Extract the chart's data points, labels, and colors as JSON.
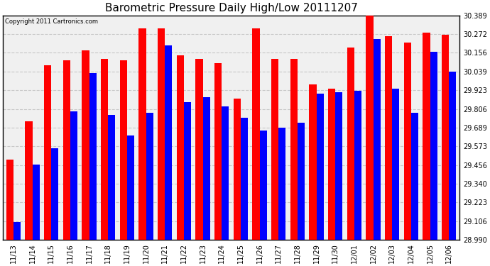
{
  "title": "Barometric Pressure Daily High/Low 20111207",
  "copyright": "Copyright 2011 Cartronics.com",
  "dates": [
    "11/13",
    "11/14",
    "11/15",
    "11/16",
    "11/17",
    "11/18",
    "11/19",
    "11/20",
    "11/21",
    "11/22",
    "11/23",
    "11/24",
    "11/25",
    "11/26",
    "11/27",
    "11/28",
    "11/29",
    "11/30",
    "12/01",
    "12/02",
    "12/03",
    "12/04",
    "12/05",
    "12/06"
  ],
  "highs": [
    29.49,
    29.73,
    30.08,
    30.11,
    30.17,
    30.12,
    30.11,
    30.31,
    30.31,
    30.14,
    30.12,
    30.09,
    29.87,
    30.31,
    30.12,
    30.12,
    29.96,
    29.93,
    30.19,
    30.4,
    30.26,
    30.22,
    30.28,
    30.27
  ],
  "lows": [
    29.1,
    29.46,
    29.56,
    29.79,
    30.03,
    29.77,
    29.64,
    29.78,
    30.2,
    29.85,
    29.88,
    29.82,
    29.75,
    29.67,
    29.69,
    29.72,
    29.9,
    29.91,
    29.92,
    30.24,
    29.93,
    29.78,
    30.16,
    30.04
  ],
  "ymin": 28.99,
  "ymax": 30.389,
  "yticks": [
    28.99,
    29.106,
    29.223,
    29.34,
    29.456,
    29.573,
    29.689,
    29.806,
    29.923,
    30.039,
    30.156,
    30.272,
    30.389
  ],
  "bar_width": 0.38,
  "high_color": "#ff0000",
  "low_color": "#0000ff",
  "bg_color": "#ffffff",
  "plot_bg_color": "#f0f0f0",
  "grid_color": "#c8c8c8",
  "title_fontsize": 11,
  "tick_fontsize": 7,
  "copyright_fontsize": 6
}
